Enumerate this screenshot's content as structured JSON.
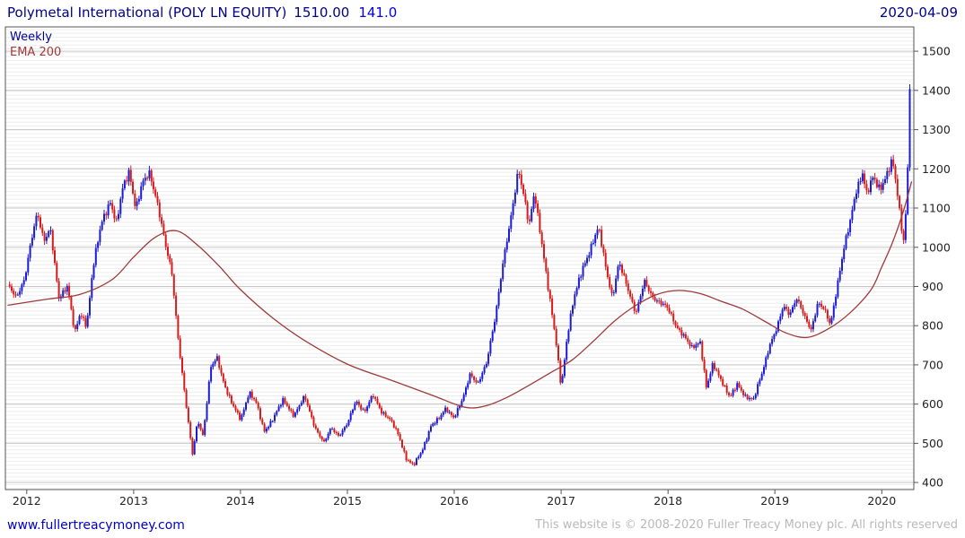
{
  "header": {
    "name": "Polymetal International (POLY LN EQUITY)",
    "price": "1510.00",
    "change": "141.0",
    "date": "2020-04-09"
  },
  "legend": {
    "weekly": "Weekly",
    "ema": "EMA 200"
  },
  "footer": {
    "site": "www.fullertreacymoney.com",
    "copyright": "This website is © 2008-2020 Fuller Treacy Money plc. All rights reserved"
  },
  "chart_data": {
    "type": "candlestick",
    "title": "Polymetal International (POLY LN EQUITY) 1510.00 141.0",
    "instrument": "Polymetal International",
    "ticker": "POLY LN EQUITY",
    "interval": "Weekly",
    "overlay": "EMA 200",
    "last_price": 1510.0,
    "change": 141.0,
    "date": "2020-04-09",
    "x_axis": {
      "ticks": [
        2012,
        2013,
        2014,
        2015,
        2016,
        2017,
        2018,
        2019,
        2020
      ],
      "range": [
        2011.8,
        2020.3
      ]
    },
    "y_axis": {
      "ticks": [
        400,
        500,
        600,
        700,
        800,
        900,
        1000,
        1100,
        1200,
        1300,
        1400,
        1500
      ],
      "range": [
        382,
        1562
      ]
    },
    "colors": {
      "up": "#1c1cd2",
      "down": "#d41c1c",
      "ema": "#9e3a3a",
      "grid": "#c6c6c6",
      "stripe": "#ededed",
      "axis": "#555555",
      "label": "#222222"
    },
    "close_keypoints": [
      [
        2011.82,
        900
      ],
      [
        2011.9,
        875
      ],
      [
        2011.98,
        920
      ],
      [
        2012.04,
        1010
      ],
      [
        2012.1,
        1090
      ],
      [
        2012.16,
        1020
      ],
      [
        2012.22,
        1045
      ],
      [
        2012.3,
        870
      ],
      [
        2012.38,
        905
      ],
      [
        2012.45,
        778
      ],
      [
        2012.5,
        830
      ],
      [
        2012.56,
        802
      ],
      [
        2012.62,
        950
      ],
      [
        2012.7,
        1060
      ],
      [
        2012.78,
        1120
      ],
      [
        2012.84,
        1062
      ],
      [
        2012.9,
        1150
      ],
      [
        2012.96,
        1195
      ],
      [
        2013.02,
        1100
      ],
      [
        2013.08,
        1160
      ],
      [
        2013.15,
        1188
      ],
      [
        2013.22,
        1120
      ],
      [
        2013.3,
        1000
      ],
      [
        2013.36,
        930
      ],
      [
        2013.42,
        760
      ],
      [
        2013.48,
        620
      ],
      [
        2013.55,
        470
      ],
      [
        2013.6,
        560
      ],
      [
        2013.65,
        520
      ],
      [
        2013.72,
        690
      ],
      [
        2013.78,
        718
      ],
      [
        2013.85,
        650
      ],
      [
        2013.92,
        600
      ],
      [
        2014.0,
        560
      ],
      [
        2014.08,
        632
      ],
      [
        2014.15,
        600
      ],
      [
        2014.22,
        530
      ],
      [
        2014.3,
        562
      ],
      [
        2014.4,
        610
      ],
      [
        2014.5,
        572
      ],
      [
        2014.6,
        618
      ],
      [
        2014.7,
        540
      ],
      [
        2014.78,
        500
      ],
      [
        2014.85,
        540
      ],
      [
        2014.92,
        520
      ],
      [
        2015.0,
        548
      ],
      [
        2015.08,
        610
      ],
      [
        2015.16,
        580
      ],
      [
        2015.24,
        622
      ],
      [
        2015.32,
        582
      ],
      [
        2015.4,
        560
      ],
      [
        2015.48,
        520
      ],
      [
        2015.55,
        462
      ],
      [
        2015.62,
        443
      ],
      [
        2015.7,
        482
      ],
      [
        2015.78,
        545
      ],
      [
        2015.86,
        562
      ],
      [
        2015.92,
        590
      ],
      [
        2016.0,
        566
      ],
      [
        2016.08,
        612
      ],
      [
        2016.15,
        680
      ],
      [
        2016.22,
        652
      ],
      [
        2016.3,
        700
      ],
      [
        2016.38,
        820
      ],
      [
        2016.45,
        950
      ],
      [
        2016.52,
        1055
      ],
      [
        2016.6,
        1205
      ],
      [
        2016.66,
        1118
      ],
      [
        2016.7,
        1050
      ],
      [
        2016.75,
        1140
      ],
      [
        2016.82,
        1012
      ],
      [
        2016.88,
        892
      ],
      [
        2016.95,
        762
      ],
      [
        2017.0,
        645
      ],
      [
        2017.06,
        780
      ],
      [
        2017.12,
        868
      ],
      [
        2017.2,
        948
      ],
      [
        2017.28,
        1000
      ],
      [
        2017.35,
        1048
      ],
      [
        2017.42,
        948
      ],
      [
        2017.48,
        872
      ],
      [
        2017.54,
        958
      ],
      [
        2017.62,
        900
      ],
      [
        2017.7,
        832
      ],
      [
        2017.78,
        910
      ],
      [
        2017.85,
        878
      ],
      [
        2017.92,
        860
      ],
      [
        2018.0,
        842
      ],
      [
        2018.08,
        800
      ],
      [
        2018.15,
        772
      ],
      [
        2018.22,
        742
      ],
      [
        2018.3,
        762
      ],
      [
        2018.36,
        640
      ],
      [
        2018.42,
        700
      ],
      [
        2018.5,
        662
      ],
      [
        2018.58,
        616
      ],
      [
        2018.65,
        650
      ],
      [
        2018.72,
        622
      ],
      [
        2018.8,
        610
      ],
      [
        2018.88,
        680
      ],
      [
        2018.95,
        752
      ],
      [
        2019.02,
        792
      ],
      [
        2019.08,
        850
      ],
      [
        2019.14,
        832
      ],
      [
        2019.2,
        870
      ],
      [
        2019.28,
        820
      ],
      [
        2019.34,
        792
      ],
      [
        2019.4,
        858
      ],
      [
        2019.46,
        840
      ],
      [
        2019.52,
        802
      ],
      [
        2019.58,
        900
      ],
      [
        2019.64,
        988
      ],
      [
        2019.7,
        1058
      ],
      [
        2019.76,
        1148
      ],
      [
        2019.82,
        1190
      ],
      [
        2019.86,
        1132
      ],
      [
        2019.92,
        1178
      ],
      [
        2019.98,
        1152
      ],
      [
        2020.04,
        1180
      ],
      [
        2020.1,
        1218
      ],
      [
        2020.14,
        1150
      ],
      [
        2020.18,
        1062
      ],
      [
        2020.21,
        1012
      ],
      [
        2020.24,
        1170
      ],
      [
        2020.26,
        1390
      ],
      [
        2020.28,
        1510
      ]
    ],
    "ema_keypoints": [
      [
        2011.82,
        852
      ],
      [
        2012.2,
        868
      ],
      [
        2012.5,
        880
      ],
      [
        2012.8,
        918
      ],
      [
        2013.0,
        975
      ],
      [
        2013.2,
        1025
      ],
      [
        2013.4,
        1042
      ],
      [
        2013.6,
        1005
      ],
      [
        2013.8,
        952
      ],
      [
        2014.0,
        892
      ],
      [
        2014.3,
        820
      ],
      [
        2014.6,
        762
      ],
      [
        2015.0,
        702
      ],
      [
        2015.4,
        662
      ],
      [
        2015.8,
        622
      ],
      [
        2016.1,
        592
      ],
      [
        2016.3,
        596
      ],
      [
        2016.5,
        618
      ],
      [
        2016.7,
        648
      ],
      [
        2016.9,
        680
      ],
      [
        2017.1,
        712
      ],
      [
        2017.3,
        760
      ],
      [
        2017.5,
        812
      ],
      [
        2017.7,
        852
      ],
      [
        2017.9,
        880
      ],
      [
        2018.1,
        890
      ],
      [
        2018.3,
        882
      ],
      [
        2018.5,
        862
      ],
      [
        2018.7,
        842
      ],
      [
        2018.9,
        812
      ],
      [
        2019.1,
        782
      ],
      [
        2019.3,
        770
      ],
      [
        2019.5,
        792
      ],
      [
        2019.7,
        832
      ],
      [
        2019.9,
        892
      ],
      [
        2020.0,
        950
      ],
      [
        2020.1,
        1012
      ],
      [
        2020.2,
        1090
      ],
      [
        2020.28,
        1168
      ]
    ]
  }
}
